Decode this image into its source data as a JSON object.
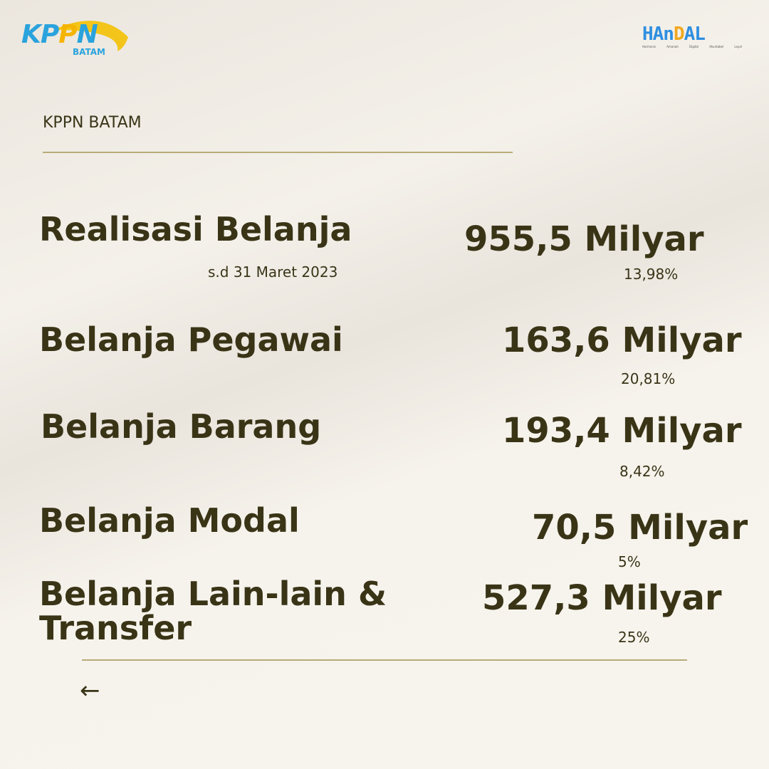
{
  "logos": {
    "kppn": {
      "text": "KPPN",
      "subtitle": "BATAM"
    },
    "handal": {
      "text": "HAnDAL",
      "subtitles": [
        "Harmonis",
        "Amanah",
        "Digital",
        "Akuntabel",
        "Loyal"
      ]
    }
  },
  "header": "KPPN BATAM",
  "summary": {
    "label": "Realisasi Belanja",
    "period": "s.d 31 Maret 2023",
    "value": "955,5 Milyar",
    "percent": "13,98%"
  },
  "items": [
    {
      "label": "Belanja Pegawai",
      "value": "163,6 Milyar",
      "percent": "20,81%"
    },
    {
      "label": "Belanja Barang",
      "value": "193,4 Milyar",
      "percent": "8,42%"
    },
    {
      "label": "Belanja Modal",
      "value": "70,5 Milyar",
      "percent": "5%"
    },
    {
      "label": "Belanja Lain-lain & Transfer",
      "value": "527,3 Milyar",
      "percent": "25%"
    }
  ],
  "nav": {
    "back_icon": "arrow-left-icon",
    "back": "←"
  },
  "colors": {
    "text": "#3a3417",
    "rule": "#b8ab78",
    "kppn_blue": "#2aa3dd",
    "kppn_yellow": "#f5b400"
  }
}
